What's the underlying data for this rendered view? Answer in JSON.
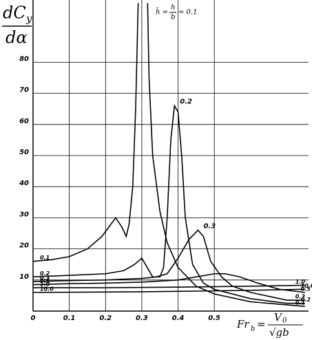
{
  "chart_data": {
    "type": "line",
    "ylabel": {
      "num": "dC",
      "sub": "y",
      "den": "dα"
    },
    "annotation": {
      "lhs": "h̄ =",
      "num": "h",
      "den": "b",
      "rhs": "= 0.1"
    },
    "xlabel": {
      "lhs": "Fr",
      "sub": "b",
      "eq": "=",
      "num": "V",
      "num_sub": "0",
      "den": "√gb"
    },
    "xlim": [
      0,
      0.76
    ],
    "ylim": [
      0,
      100
    ],
    "xticks": [
      0,
      0.1,
      0.2,
      0.3,
      0.4,
      0.5
    ],
    "yticks": [
      10,
      20,
      30,
      40,
      50,
      60,
      70,
      80
    ],
    "grid": true,
    "series": [
      {
        "name": "0.1",
        "color": "#000000",
        "x": [
          0,
          0.05,
          0.1,
          0.15,
          0.19,
          0.228,
          0.245,
          0.257,
          0.265,
          0.275,
          0.283,
          0.29,
          0.3,
          0.316,
          0.32,
          0.33,
          0.35,
          0.37,
          0.4,
          0.45,
          0.5,
          0.6,
          0.7,
          0.75
        ],
        "values": [
          16,
          16.5,
          17.5,
          20,
          24,
          30,
          27,
          24,
          28,
          40,
          65,
          99,
          null,
          99,
          75,
          50,
          32,
          22,
          14,
          8,
          5.5,
          3,
          2,
          1.5
        ]
      },
      {
        "name": "0.2",
        "color": "#000000",
        "x": [
          0,
          0.1,
          0.2,
          0.25,
          0.28,
          0.3,
          0.31,
          0.33,
          0.35,
          0.36,
          0.37,
          0.38,
          0.39,
          0.4,
          0.41,
          0.42,
          0.44,
          0.47,
          0.5,
          0.6,
          0.7,
          0.75
        ],
        "values": [
          11,
          11.5,
          12,
          13,
          15,
          17,
          15,
          11,
          11,
          14,
          30,
          55,
          66,
          64,
          50,
          30,
          15,
          9,
          7,
          4,
          2.5,
          2.5
        ]
      },
      {
        "name": "0.3",
        "color": "#000000",
        "x": [
          0,
          0.1,
          0.2,
          0.3,
          0.34,
          0.37,
          0.4,
          0.43,
          0.455,
          0.47,
          0.49,
          0.52,
          0.55,
          0.6,
          0.7,
          0.75
        ],
        "values": [
          9.5,
          9.8,
          10,
          10.5,
          11,
          12,
          17,
          23,
          26,
          24,
          16,
          11,
          8,
          6,
          3.5,
          3.5
        ]
      },
      {
        "name": "0.5",
        "color": "#000000",
        "x": [
          0,
          0.1,
          0.2,
          0.3,
          0.4,
          0.45,
          0.5,
          0.53,
          0.57,
          0.62,
          0.68,
          0.75
        ],
        "values": [
          8.5,
          8.8,
          9,
          9.3,
          10,
          11,
          12,
          12,
          11,
          9,
          7,
          6
        ]
      },
      {
        "name": "1.0",
        "color": "#000000",
        "x": [
          0,
          0.2,
          0.4,
          0.6,
          0.75
        ],
        "values": [
          7.5,
          7.5,
          7.7,
          8,
          8.3
        ]
      },
      {
        "name": "10.0",
        "color": "#000000",
        "x": [
          0,
          0.3,
          0.5,
          0.75
        ],
        "values": [
          6,
          6.2,
          6.5,
          7
        ]
      }
    ]
  }
}
